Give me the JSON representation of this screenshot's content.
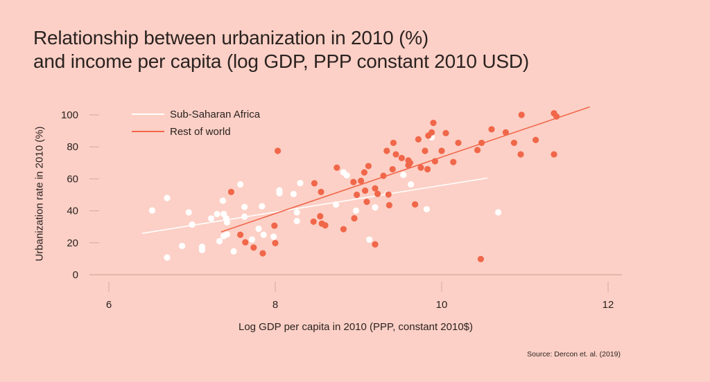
{
  "title": {
    "line1": "Relationship between urbanization in 2010 (%)",
    "line2": "and income per capita (log GDP, PPP constant 2010 USD)"
  },
  "source": "Source: Dercon et. al. (2019)",
  "colors": {
    "background": "#fcd0c6",
    "ssa": "#ffffff",
    "row": "#f0674a",
    "axis": "#e6b4ab",
    "tick": "#d8a89e"
  },
  "chart_data": {
    "type": "scatter",
    "title": "Relationship between urbanization in 2010 (%) and income per capita (log GDP, PPP constant 2010 USD)",
    "xlabel": "Log GDP per capita in 2010 (PPP, constant 2010$)",
    "ylabel": "Urbanization rate in 2010 (%)",
    "xlim": [
      5.5,
      12.2
    ],
    "ylim": [
      0,
      105
    ],
    "x_ticks": [
      6,
      8,
      10,
      12
    ],
    "y_ticks": [
      0,
      20,
      40,
      60,
      80,
      100
    ],
    "grid": false,
    "legend": "top-left",
    "series": [
      {
        "name": "Sub-Saharan Africa",
        "color": "#ffffff",
        "points": [
          [
            6.52,
            40.2
          ],
          [
            6.7,
            48.0
          ],
          [
            6.7,
            10.8
          ],
          [
            6.88,
            18.0
          ],
          [
            6.96,
            39.0
          ],
          [
            7.0,
            31.4
          ],
          [
            7.12,
            17.5
          ],
          [
            7.12,
            15.5
          ],
          [
            7.23,
            35.2
          ],
          [
            7.3,
            38.0
          ],
          [
            7.33,
            21.0
          ],
          [
            7.37,
            46.3
          ],
          [
            7.38,
            24.2
          ],
          [
            7.38,
            38.0
          ],
          [
            7.41,
            35.3
          ],
          [
            7.42,
            32.8
          ],
          [
            7.42,
            25.2
          ],
          [
            7.5,
            14.6
          ],
          [
            7.58,
            56.5
          ],
          [
            7.63,
            42.4
          ],
          [
            7.63,
            36.3
          ],
          [
            7.72,
            22.0
          ],
          [
            7.8,
            28.8
          ],
          [
            7.84,
            42.8
          ],
          [
            7.86,
            25.0
          ],
          [
            7.98,
            23.8
          ],
          [
            8.05,
            52.8
          ],
          [
            8.05,
            51.0
          ],
          [
            8.22,
            50.5
          ],
          [
            8.26,
            33.6
          ],
          [
            8.26,
            39.0
          ],
          [
            8.3,
            57.3
          ],
          [
            8.73,
            43.9
          ],
          [
            8.82,
            64.0
          ],
          [
            8.86,
            62.2
          ],
          [
            8.97,
            40.1
          ],
          [
            9.13,
            22.0
          ],
          [
            9.2,
            42.1
          ],
          [
            9.35,
            50.5
          ],
          [
            9.54,
            62.5
          ],
          [
            9.63,
            56.5
          ],
          [
            9.82,
            41.0
          ],
          [
            9.88,
            86.0
          ],
          [
            10.68,
            39.0
          ]
        ],
        "fit": {
          "x": [
            6.4,
            10.55
          ],
          "y": [
            25.9,
            60.5
          ]
        }
      },
      {
        "name": "Rest of world",
        "color": "#f0674a",
        "points": [
          [
            7.47,
            51.8
          ],
          [
            7.58,
            25.0
          ],
          [
            7.64,
            20.3
          ],
          [
            7.74,
            17.0
          ],
          [
            7.85,
            13.4
          ],
          [
            7.99,
            30.7
          ],
          [
            8.0,
            19.8
          ],
          [
            8.03,
            77.5
          ],
          [
            8.46,
            33.2
          ],
          [
            8.47,
            57.2
          ],
          [
            8.54,
            36.6
          ],
          [
            8.55,
            51.8
          ],
          [
            8.56,
            32.0
          ],
          [
            8.6,
            30.9
          ],
          [
            8.74,
            67.0
          ],
          [
            8.82,
            28.5
          ],
          [
            8.94,
            58.0
          ],
          [
            8.95,
            35.3
          ],
          [
            8.98,
            50.0
          ],
          [
            9.03,
            58.7
          ],
          [
            9.07,
            64.0
          ],
          [
            9.08,
            52.6
          ],
          [
            9.1,
            45.6
          ],
          [
            9.12,
            68.0
          ],
          [
            9.2,
            54.0
          ],
          [
            9.2,
            19.0
          ],
          [
            9.23,
            50.6
          ],
          [
            9.3,
            61.9
          ],
          [
            9.34,
            77.5
          ],
          [
            9.36,
            50.2
          ],
          [
            9.37,
            43.5
          ],
          [
            9.41,
            66.0
          ],
          [
            9.42,
            82.5
          ],
          [
            9.45,
            75.3
          ],
          [
            9.52,
            73.0
          ],
          [
            9.6,
            71.5
          ],
          [
            9.6,
            68.5
          ],
          [
            9.62,
            70.0
          ],
          [
            9.68,
            44.0
          ],
          [
            9.72,
            84.7
          ],
          [
            9.75,
            67.0
          ],
          [
            9.8,
            77.5
          ],
          [
            9.83,
            66.0
          ],
          [
            9.84,
            87.0
          ],
          [
            9.88,
            89.0
          ],
          [
            9.9,
            95.0
          ],
          [
            9.92,
            71.0
          ],
          [
            10.0,
            77.5
          ],
          [
            10.05,
            88.6
          ],
          [
            10.14,
            70.5
          ],
          [
            10.2,
            82.5
          ],
          [
            10.43,
            78.0
          ],
          [
            10.48,
            82.5
          ],
          [
            10.47,
            9.8
          ],
          [
            10.6,
            91.0
          ],
          [
            10.77,
            89.0
          ],
          [
            10.87,
            82.5
          ],
          [
            10.95,
            75.3
          ],
          [
            10.96,
            100.0
          ],
          [
            11.13,
            84.3
          ],
          [
            11.35,
            101.0
          ],
          [
            11.38,
            99.0
          ],
          [
            11.35,
            75.3
          ]
        ],
        "fit": {
          "x": [
            7.35,
            11.78
          ],
          "y": [
            26.8,
            105.0
          ]
        }
      }
    ]
  }
}
